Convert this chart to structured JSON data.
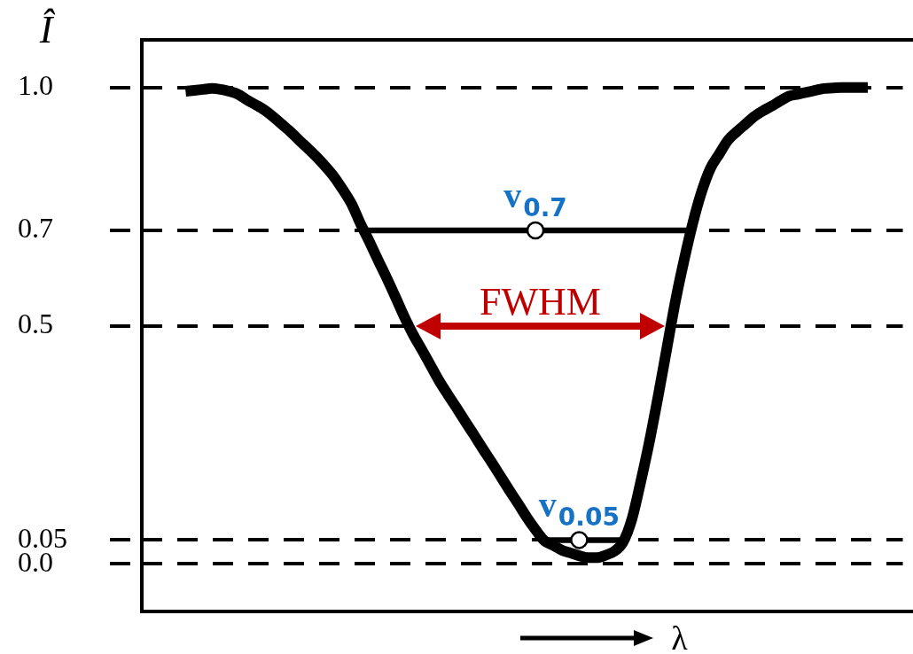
{
  "chart_data": {
    "type": "line",
    "xlabel": "λ",
    "ylabel": "Î",
    "categories": [
      null,
      null,
      null,
      null,
      null,
      null,
      null,
      null,
      null,
      null,
      null,
      null,
      null,
      null,
      null,
      null,
      null,
      null,
      null,
      null,
      null,
      null,
      null,
      null,
      null,
      null,
      null,
      null,
      null,
      null,
      null,
      null,
      null,
      null,
      null,
      null,
      null,
      null,
      null,
      null,
      null,
      null,
      null,
      null,
      null,
      null,
      null,
      null,
      null,
      null,
      null,
      null,
      null,
      null,
      null,
      null,
      null,
      null,
      null,
      null,
      null,
      null,
      null,
      null,
      null,
      null,
      null,
      null,
      null,
      null,
      null,
      null,
      null,
      null,
      null,
      null,
      null,
      null,
      null,
      null,
      null,
      null,
      null,
      null,
      null,
      null,
      null,
      null
    ],
    "ylim": [
      -0.1,
      1.1
    ],
    "yticks": [
      {
        "value": 0,
        "label": "0.0"
      },
      0.05,
      0.5,
      0.7,
      {
        "value": 1,
        "label": "1.0"
      }
    ],
    "grid": "y",
    "tick_labels": "y",
    "annotations": [
      "FWHM"
    ],
    "series": [
      {
        "color": "#000000",
        "values": [
          null,
          null,
          null,
          null,
          null,
          0.992,
          0.994,
          0.996,
          0.998,
          0.996,
          0.992,
          0.986,
          0.974,
          0.964,
          0.953,
          0.939,
          0.923,
          0.907,
          0.889,
          0.872,
          0.854,
          0.834,
          0.812,
          0.785,
          0.755,
          0.714,
          0.677,
          0.638,
          0.6,
          0.56,
          0.519,
          0.482,
          0.45,
          0.417,
          0.384,
          0.355,
          0.327,
          0.298,
          0.27,
          0.241,
          0.213,
          0.184,
          0.155,
          0.127,
          0.098,
          0.072,
          0.049,
          0.039,
          0.029,
          0.023,
          0.017,
          0.013,
          0.013,
          0.018,
          0.026,
          0.045,
          0.092,
          0.169,
          0.254,
          0.349,
          0.45,
          0.551,
          0.638,
          0.716,
          0.781,
          0.83,
          0.86,
          0.889,
          0.907,
          0.923,
          0.939,
          0.951,
          0.961,
          0.972,
          0.982,
          0.986,
          0.99,
          0.994,
          0.998,
          0.999,
          1.0,
          1.0,
          1.0,
          1.0,
          null,
          null,
          null,
          null
        ]
      },
      {
        "color": "#000000",
        "values": [
          null,
          null,
          null,
          null,
          null,
          null,
          null,
          null,
          null,
          null,
          null,
          null,
          null,
          null,
          null,
          null,
          null,
          null,
          null,
          null,
          null,
          null,
          null,
          null,
          null,
          0.7,
          0.7,
          0.7,
          0.7,
          0.7,
          0.7,
          0.7,
          0.7,
          0.7,
          0.7,
          0.7,
          0.7,
          0.7,
          0.7,
          0.7,
          0.7,
          0.7,
          0.7,
          0.7,
          0.7,
          0.7,
          0.7,
          0.7,
          0.7,
          0.7,
          0.7,
          0.7,
          0.7,
          0.7,
          0.7,
          0.7,
          0.7,
          0.7,
          0.7,
          0.7,
          0.7,
          0.7,
          0.7,
          0.7,
          null,
          null,
          null,
          null,
          null,
          null,
          null,
          null,
          null,
          null,
          null,
          null,
          null,
          null,
          null,
          null,
          null,
          null,
          null,
          null,
          null,
          null,
          null,
          null
        ]
      },
      {
        "color": "#000000",
        "values": [
          null,
          null,
          null,
          null,
          null,
          null,
          null,
          null,
          null,
          null,
          null,
          null,
          null,
          null,
          null,
          null,
          null,
          null,
          null,
          null,
          null,
          null,
          null,
          null,
          null,
          null,
          null,
          null,
          null,
          null,
          null,
          null,
          null,
          null,
          null,
          null,
          null,
          null,
          null,
          null,
          null,
          null,
          null,
          null,
          null,
          null,
          0.05,
          0.05,
          0.05,
          0.05,
          0.05,
          0.05,
          0.05,
          0.05,
          0.05,
          0.05,
          null,
          null,
          null,
          null,
          null,
          null,
          null,
          null,
          null,
          null,
          null,
          null,
          null,
          null,
          null,
          null,
          null,
          null,
          null,
          null,
          null,
          null,
          null,
          null,
          null,
          null,
          null,
          null,
          null,
          null,
          null,
          null
        ]
      },
      {
        "type": "scatter",
        "name": "v$_{0.7}$",
        "color": "#ffffff",
        "marker": "circle",
        "values": [
          null,
          null,
          null,
          null,
          null,
          null,
          null,
          null,
          null,
          null,
          null,
          null,
          null,
          null,
          null,
          null,
          null,
          null,
          null,
          null,
          null,
          null,
          null,
          null,
          null,
          null,
          null,
          null,
          null,
          null,
          null,
          null,
          null,
          null,
          null,
          null,
          null,
          null,
          null,
          null,
          null,
          null,
          null,
          null,
          null,
          0.7,
          null,
          null,
          null,
          null,
          null,
          null,
          null,
          null,
          null,
          null,
          null,
          null,
          null,
          null,
          null,
          null,
          null,
          null,
          null,
          null,
          null,
          null,
          null,
          null,
          null,
          null,
          null,
          null,
          null,
          null,
          null,
          null,
          null,
          null,
          null,
          null,
          null,
          null,
          null,
          null,
          null,
          null
        ]
      },
      {
        "type": "scatter",
        "name": "v$_{0.05}$",
        "color": "#ffffff",
        "marker": "circle",
        "values": [
          null,
          null,
          null,
          null,
          null,
          null,
          null,
          null,
          null,
          null,
          null,
          null,
          null,
          null,
          null,
          null,
          null,
          null,
          null,
          null,
          null,
          null,
          null,
          null,
          null,
          null,
          null,
          null,
          null,
          null,
          null,
          null,
          null,
          null,
          null,
          null,
          null,
          null,
          null,
          null,
          null,
          null,
          null,
          null,
          null,
          null,
          null,
          null,
          null,
          null,
          0.05,
          null,
          null,
          null,
          null,
          null,
          null,
          null,
          null,
          null,
          null,
          null,
          null,
          null,
          null,
          null,
          null,
          null,
          null,
          null,
          null,
          null,
          null,
          null,
          null,
          null,
          null,
          null,
          null,
          null,
          null,
          null,
          null,
          null,
          null,
          null,
          null,
          null
        ]
      }
    ]
  }
}
